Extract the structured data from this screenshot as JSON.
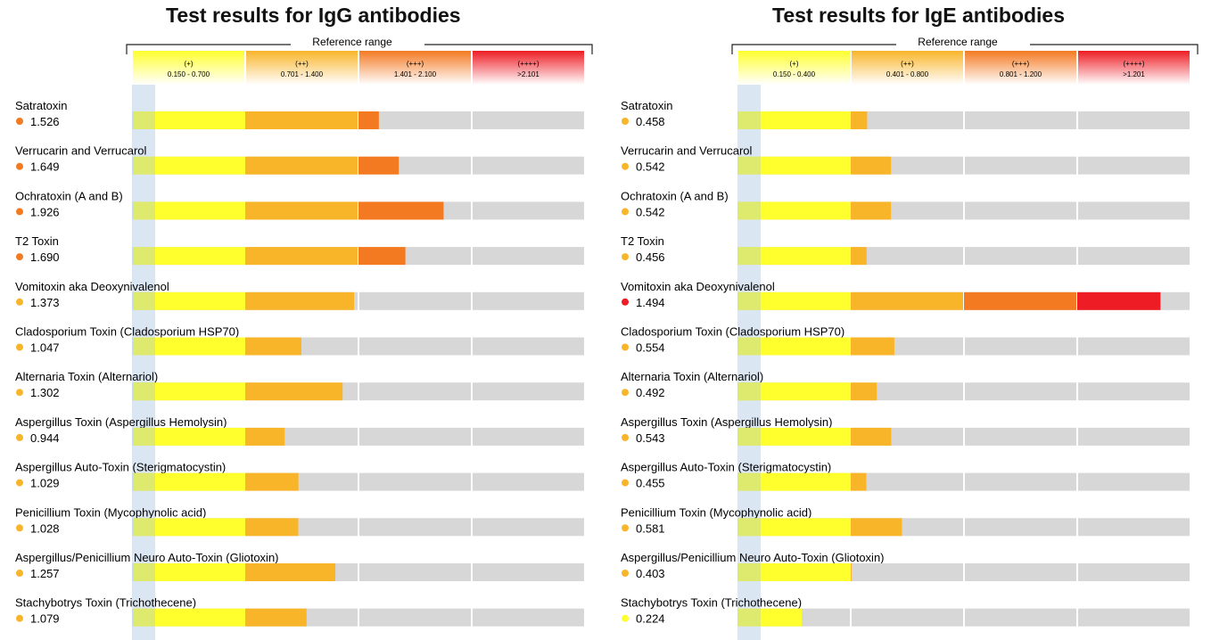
{
  "chart_data": [
    {
      "type": "bar",
      "title": "Test results for IgG antibodies",
      "reference_label": "Reference range",
      "bands": [
        {
          "grade": "(+)",
          "range": "0.150 - 0.700",
          "lower": 0.15,
          "upper": 0.7,
          "color": "#ffff2e"
        },
        {
          "grade": "(++)",
          "range": "0.701 - 1.400",
          "lower": 0.701,
          "upper": 1.4,
          "color": "#f9b52a"
        },
        {
          "grade": "(+++)",
          "range": "1.401 - 2.100",
          "lower": 1.401,
          "upper": 2.1,
          "color": "#f47a22"
        },
        {
          "grade": "(++++)",
          "range": ">2.101",
          "lower": 2.101,
          "upper": 2.8,
          "color": "#ee1c24"
        }
      ],
      "categories": [
        "Satratoxin",
        "Verrucarin and Verrucarol",
        "Ochratoxin (A and B)",
        "T2 Toxin",
        "Vomitoxin aka Deoxynivalenol",
        "Cladosporium Toxin (Cladosporium HSP70)",
        "Alternaria Toxin (Alternariol)",
        "Aspergillus Toxin (Aspergillus Hemolysin)",
        "Aspergillus Auto-Toxin (Sterigmatocystin)",
        "Penicillium Toxin (Mycophynolic acid)",
        "Aspergillus/Penicillium Neuro Auto-Toxin (Gliotoxin)",
        "Stachybotrys Toxin (Trichothecene)"
      ],
      "values": [
        1.526,
        1.649,
        1.926,
        1.69,
        1.373,
        1.047,
        1.302,
        0.944,
        1.029,
        1.028,
        1.257,
        1.079
      ],
      "value_labels": [
        "1.526",
        "1.649",
        "1.926",
        "1.690",
        "1.373",
        "1.047",
        "1.302",
        "0.944",
        "1.029",
        "1.028",
        "1.257",
        "1.079"
      ]
    },
    {
      "type": "bar",
      "title": "Test results for IgE antibodies",
      "reference_label": "Reference range",
      "bands": [
        {
          "grade": "(+)",
          "range": "0.150 - 0.400",
          "lower": 0.15,
          "upper": 0.4,
          "color": "#ffff2e"
        },
        {
          "grade": "(++)",
          "range": "0.401 - 0.800",
          "lower": 0.401,
          "upper": 0.8,
          "color": "#f9b52a"
        },
        {
          "grade": "(+++)",
          "range": "0.801 - 1.200",
          "lower": 0.801,
          "upper": 1.2,
          "color": "#f47a22"
        },
        {
          "grade": "(++++)",
          "range": ">1.201",
          "lower": 1.201,
          "upper": 1.6,
          "color": "#ee1c24"
        }
      ],
      "categories": [
        "Satratoxin",
        "Verrucarin and Verrucarol",
        "Ochratoxin (A and B)",
        "T2 Toxin",
        "Vomitoxin aka Deoxynivalenol",
        "Cladosporium Toxin (Cladosporium HSP70)",
        "Alternaria Toxin (Alternariol)",
        "Aspergillus Toxin (Aspergillus Hemolysin)",
        "Aspergillus Auto-Toxin (Sterigmatocystin)",
        "Penicillium Toxin (Mycophynolic acid)",
        "Aspergillus/Penicillium Neuro Auto-Toxin (Gliotoxin)",
        "Stachybotrys Toxin (Trichothecene)"
      ],
      "values": [
        0.458,
        0.542,
        0.542,
        0.456,
        1.494,
        0.554,
        0.492,
        0.543,
        0.455,
        0.581,
        0.403,
        0.224
      ],
      "value_labels": [
        "0.458",
        "0.542",
        "0.542",
        "0.456",
        "1.494",
        "0.554",
        "0.492",
        "0.543",
        "0.455",
        "0.581",
        "0.403",
        "0.224"
      ]
    }
  ]
}
